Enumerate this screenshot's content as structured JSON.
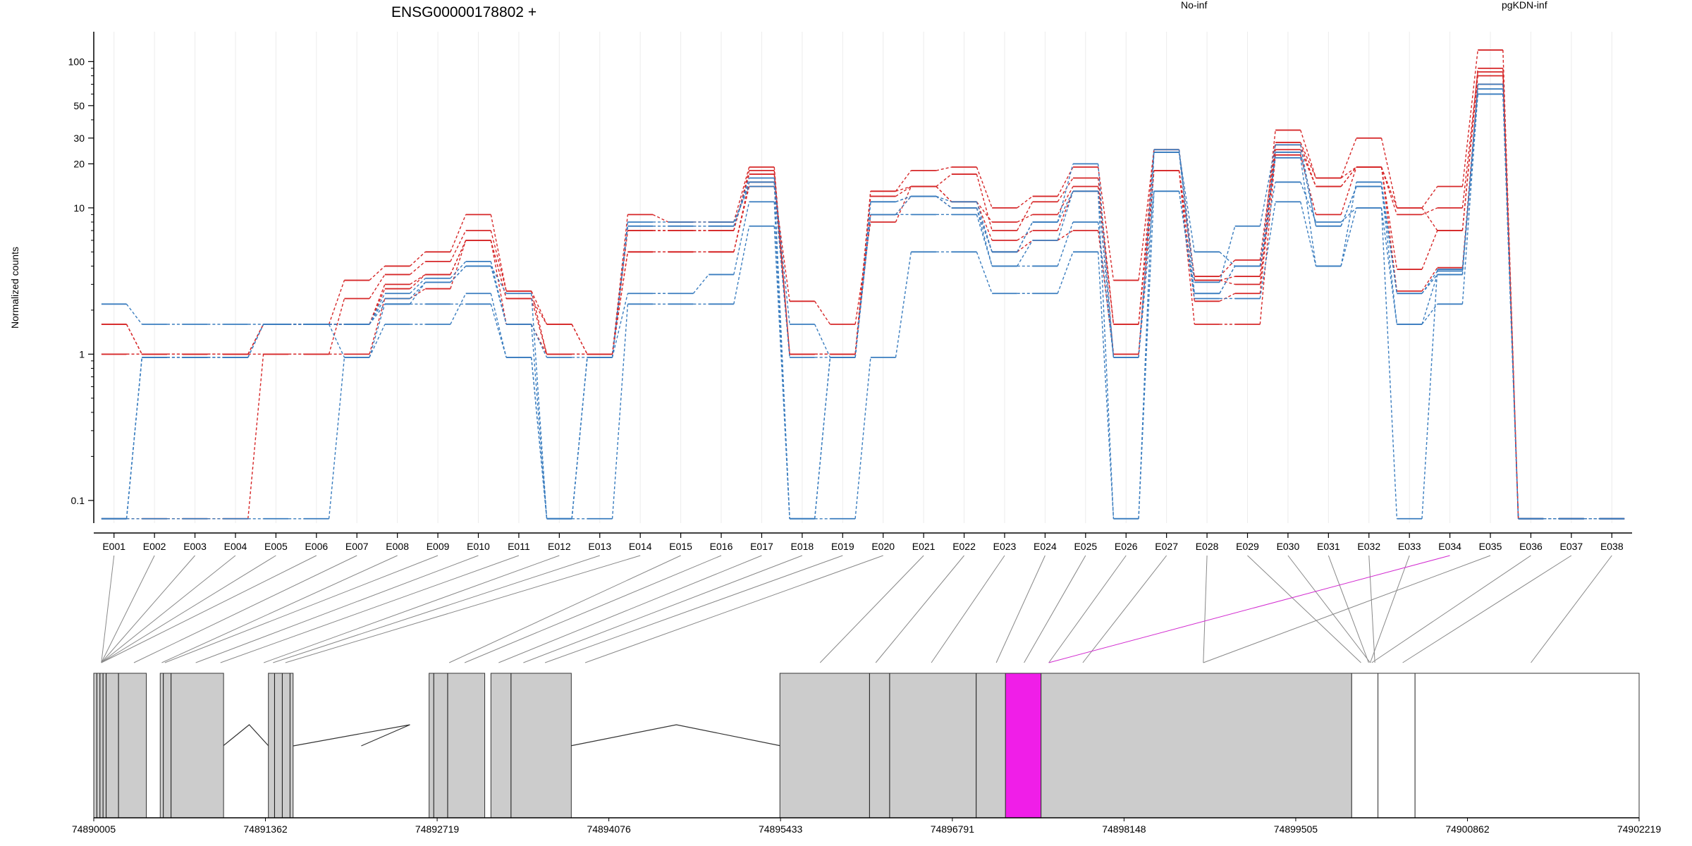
{
  "chart_data": {
    "type": "line",
    "title": "ENSG00000178802 +",
    "ylabel": "Normalized counts",
    "y_scale": "log",
    "ylim": [
      0.07,
      160
    ],
    "y_ticks": [
      0.1,
      1,
      10,
      20,
      30,
      50,
      100
    ],
    "y_tick_labels": [
      "0.1",
      "1",
      "10",
      "20",
      "30",
      "50",
      "100"
    ],
    "legend": [
      {
        "label": "No-inf",
        "color": "#d62728"
      },
      {
        "label": "pgKDN-inf",
        "color": "#3a7dbf"
      }
    ],
    "categories": [
      "E001",
      "E002",
      "E003",
      "E004",
      "E005",
      "E006",
      "E007",
      "E008",
      "E009",
      "E010",
      "E011",
      "E012",
      "E013",
      "E014",
      "E015",
      "E016",
      "E017",
      "E018",
      "E019",
      "E020",
      "E021",
      "E022",
      "E023",
      "E024",
      "E025",
      "E026",
      "E027",
      "E028",
      "E029",
      "E030",
      "E031",
      "E032",
      "E033",
      "E034",
      "E035",
      "E036",
      "E037",
      "E038"
    ],
    "series": [
      {
        "group": "No-inf",
        "color": "#d62728",
        "values": [
          1.6,
          1,
          1,
          1,
          1.6,
          1.6,
          1.6,
          2.8,
          3.5,
          6,
          2.4,
          1.6,
          1,
          5,
          5,
          5,
          14,
          2.3,
          1.6,
          8,
          14,
          11,
          6,
          7,
          13,
          1,
          18,
          2.3,
          2.6,
          25,
          14,
          19,
          3.8,
          7,
          80,
          0.075,
          0.075,
          0.075
        ]
      },
      {
        "group": "No-inf",
        "color": "#d62728",
        "values": [
          1,
          1,
          1,
          1,
          1,
          1,
          2.4,
          3.5,
          4.3,
          7,
          2.7,
          1,
          1,
          7,
          7,
          7,
          18,
          1,
          1,
          12,
          14,
          17,
          7,
          11,
          16,
          1.6,
          18,
          3.4,
          4.4,
          28,
          16,
          19,
          9,
          10,
          85,
          0.075,
          0.075,
          0.075
        ]
      },
      {
        "group": "No-inf",
        "color": "#d62728",
        "values": [
          0.075,
          0.075,
          0.075,
          0.075,
          1,
          1,
          1,
          2.4,
          2.8,
          6,
          1.6,
          1,
          1,
          5,
          5,
          5,
          15,
          1,
          1,
          9,
          12,
          10,
          5,
          6,
          7,
          1,
          18,
          1.6,
          1.6,
          23,
          9,
          19,
          2.7,
          3.9,
          70,
          0.075,
          0.075,
          0.075
        ]
      },
      {
        "group": "No-inf",
        "color": "#d62728",
        "values": [
          1.6,
          1,
          1,
          1,
          1.6,
          1.6,
          3.2,
          4,
          5,
          9,
          2.7,
          1.6,
          1,
          9,
          8,
          8,
          19,
          1,
          1,
          13,
          18,
          19,
          10,
          12,
          19,
          3.2,
          25,
          3.2,
          3.4,
          34,
          16,
          30,
          10,
          14,
          120,
          0.075,
          0.075,
          0.075
        ]
      },
      {
        "group": "No-inf",
        "color": "#d62728",
        "values": [
          1,
          1,
          1,
          1,
          1.6,
          1.6,
          1.6,
          3,
          3.5,
          6,
          2.4,
          1,
          1,
          7,
          7,
          7,
          17,
          1,
          1,
          13,
          14,
          11,
          8,
          9,
          14,
          1.6,
          25,
          3.2,
          3,
          27,
          14,
          19,
          10,
          7,
          90,
          0.075,
          0.075,
          0.075
        ]
      },
      {
        "group": "pgKDN-inf",
        "color": "#3a7dbf",
        "values": [
          2.2,
          1.6,
          1.6,
          1.6,
          1.6,
          1.6,
          1.6,
          2.2,
          2.2,
          2.2,
          0.95,
          0.075,
          0.075,
          2.2,
          2.2,
          2.2,
          7.5,
          0.075,
          0.075,
          0.95,
          5,
          5,
          2.6,
          2.6,
          5,
          0.075,
          13,
          2.4,
          2.4,
          11,
          4,
          10,
          0.075,
          3.8,
          60,
          0.075,
          0.075,
          0.075
        ]
      },
      {
        "group": "pgKDN-inf",
        "color": "#3a7dbf",
        "values": [
          0.075,
          0.95,
          0.95,
          0.95,
          1.6,
          1.6,
          0.95,
          1.6,
          1.6,
          2.6,
          0.95,
          0.075,
          0.95,
          2.6,
          2.6,
          3.5,
          11,
          0.075,
          0.95,
          9,
          9,
          9,
          4,
          4,
          8,
          0.95,
          13,
          2.6,
          4,
          15,
          8,
          10,
          1.6,
          2.2,
          60,
          0.075,
          0.075,
          0.075
        ]
      },
      {
        "group": "pgKDN-inf",
        "color": "#3a7dbf",
        "values": [
          0.075,
          0.075,
          0.075,
          0.075,
          0.075,
          0.075,
          0.95,
          2.2,
          3.1,
          4,
          2.6,
          0.075,
          0.95,
          7.5,
          7.5,
          7.5,
          16,
          1.6,
          0.95,
          11,
          12,
          10,
          5,
          8,
          20,
          0.95,
          24,
          5,
          4,
          22,
          4,
          15,
          2.6,
          3.7,
          65,
          0.075,
          0.075,
          0.075
        ]
      },
      {
        "group": "pgKDN-inf",
        "color": "#3a7dbf",
        "values": [
          0.075,
          0.95,
          0.95,
          0.95,
          1.6,
          1.6,
          1.6,
          2.6,
          3.3,
          4.3,
          1.6,
          0.95,
          0.95,
          8,
          8,
          8,
          14,
          0.95,
          0.95,
          11,
          12,
          11,
          5,
          8,
          13,
          0.95,
          25,
          3.1,
          7.5,
          27,
          7.5,
          14,
          2.6,
          3.5,
          70,
          0.075,
          0.075,
          0.075
        ]
      },
      {
        "group": "pgKDN-inf",
        "color": "#3a7dbf",
        "values": [
          0.075,
          0.95,
          0.95,
          0.95,
          1.6,
          1.6,
          1.6,
          2.4,
          3.1,
          4,
          1.6,
          0.075,
          0.95,
          7.5,
          7.5,
          7.5,
          15,
          0.075,
          0.95,
          9,
          12,
          10,
          4,
          6,
          13,
          0.075,
          24,
          2.6,
          4,
          24,
          7.5,
          14,
          1.6,
          3.5,
          60,
          0.075,
          0.075,
          0.075
        ]
      }
    ],
    "highlighted_exon": "E034",
    "gene_model": {
      "x_ticks": [
        74890005,
        74891362,
        74892719,
        74894076,
        74895433,
        74896791,
        74898148,
        74899505,
        74900862,
        74902219
      ],
      "x_tick_labels": [
        "74890005",
        "74891362",
        "74892719",
        "74894076",
        "74895433",
        "74896791",
        "74898148",
        "74899505",
        "74900862",
        "74902219"
      ],
      "start": 74890005,
      "end": 74902219,
      "exon_anchor_fraction": [
        0.004,
        0.004,
        0.004,
        0.004,
        0.004,
        0.004,
        0.026,
        0.044,
        0.046,
        0.066,
        0.082,
        0.11,
        0.116,
        0.124,
        0.23,
        0.24,
        0.262,
        0.278,
        0.292,
        0.318,
        0.47,
        0.506,
        0.542,
        0.584,
        0.602,
        0.618,
        0.64,
        0.718,
        0.82,
        0.826,
        0.825,
        0.829,
        0.826,
        0.618,
        0.718,
        0.827,
        0.847,
        0.93
      ]
    }
  }
}
